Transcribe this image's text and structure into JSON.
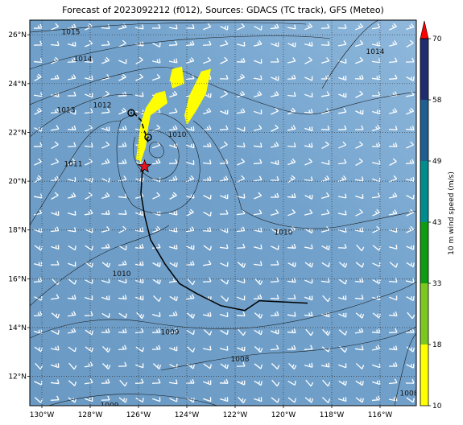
{
  "title": "Forecast of 2023092212 (f012), Sources: GDACS (TC track), GFS (Meteo)",
  "map": {
    "lon_range": [
      -130.5,
      -114.5
    ],
    "lat_range": [
      10.8,
      26.6
    ],
    "lon_ticks": [
      {
        "value": -130,
        "label": "130°W"
      },
      {
        "value": -128,
        "label": "128°W"
      },
      {
        "value": -126,
        "label": "126°W"
      },
      {
        "value": -124,
        "label": "124°W"
      },
      {
        "value": -122,
        "label": "122°W"
      },
      {
        "value": -120,
        "label": "120°W"
      },
      {
        "value": -118,
        "label": "118°W"
      },
      {
        "value": -116,
        "label": "116°W"
      }
    ],
    "lat_ticks": [
      {
        "value": 12,
        "label": "12°N"
      },
      {
        "value": 14,
        "label": "14°N"
      },
      {
        "value": 16,
        "label": "16°N"
      },
      {
        "value": 18,
        "label": "18°N"
      },
      {
        "value": 20,
        "label": "20°N"
      },
      {
        "value": 22,
        "label": "22°N"
      },
      {
        "value": 24,
        "label": "24°N"
      },
      {
        "value": 26,
        "label": "26°N"
      }
    ],
    "grid": true,
    "background_color": "#6f9fc9",
    "pressure_labels": [
      {
        "label": "1015",
        "lon": -128.8,
        "lat": 26.1
      },
      {
        "label": "1014",
        "lon": -128.3,
        "lat": 25.0
      },
      {
        "label": "1014",
        "lon": -116.2,
        "lat": 25.3
      },
      {
        "label": "1013",
        "lon": -129.0,
        "lat": 22.9
      },
      {
        "label": "1012",
        "lon": -127.5,
        "lat": 23.1
      },
      {
        "label": "1011",
        "lon": -128.7,
        "lat": 20.7
      },
      {
        "label": "1010",
        "lon": -124.4,
        "lat": 21.9
      },
      {
        "label": "1010",
        "lon": -120.0,
        "lat": 17.9
      },
      {
        "label": "1010",
        "lon": -126.7,
        "lat": 16.2
      },
      {
        "label": "1009",
        "lon": -124.7,
        "lat": 13.8
      },
      {
        "label": "1008",
        "lon": -121.8,
        "lat": 12.7
      },
      {
        "label": "1008",
        "lon": -114.8,
        "lat": 11.3
      },
      {
        "label": "1009",
        "lon": -127.2,
        "lat": 10.8
      }
    ],
    "tc_track": [
      [
        -119.0,
        15.0
      ],
      [
        -121.0,
        15.1
      ],
      [
        -121.6,
        14.7
      ],
      [
        -122.6,
        14.9
      ],
      [
        -123.6,
        15.4
      ],
      [
        -124.3,
        15.8
      ],
      [
        -124.9,
        16.6
      ],
      [
        -125.5,
        17.6
      ],
      [
        -125.75,
        18.6
      ],
      [
        -125.9,
        19.5
      ],
      [
        -125.85,
        20.3
      ],
      [
        -125.75,
        20.6
      ]
    ],
    "tc_track_north": [
      [
        -125.6,
        21.6
      ],
      [
        -125.9,
        22.5
      ],
      [
        -126.3,
        22.9
      ]
    ],
    "tc_current_position": {
      "lon": -125.75,
      "lat": 20.6
    },
    "tc_forecast_points": [
      {
        "lon": -125.6,
        "lat": 21.8
      },
      {
        "lon": -126.3,
        "lat": 22.8
      }
    ],
    "wind_swath": [
      [
        [
          -125.3,
          23.6
        ],
        [
          -124.9,
          23.7
        ],
        [
          -124.8,
          23.2
        ],
        [
          -125.5,
          22.7
        ],
        [
          -125.6,
          22.2
        ],
        [
          -125.7,
          21.4
        ],
        [
          -125.9,
          20.8
        ],
        [
          -126.1,
          20.9
        ],
        [
          -126.0,
          21.7
        ],
        [
          -125.9,
          22.4
        ],
        [
          -125.7,
          23.0
        ]
      ],
      [
        [
          -124.6,
          24.6
        ],
        [
          -124.2,
          24.7
        ],
        [
          -124.1,
          24.0
        ],
        [
          -124.6,
          23.8
        ],
        [
          -124.7,
          24.2
        ]
      ],
      [
        [
          -123.4,
          24.5
        ],
        [
          -123.0,
          24.6
        ],
        [
          -123.2,
          23.6
        ],
        [
          -123.6,
          22.9
        ],
        [
          -124.0,
          22.3
        ],
        [
          -124.1,
          22.7
        ],
        [
          -123.9,
          23.5
        ]
      ]
    ]
  },
  "colorbar": {
    "label": "10 m wind speed (m/s)",
    "ticks": [
      "10",
      "18",
      "33",
      "43",
      "49",
      "58",
      "70"
    ],
    "colors": [
      "#ffff00",
      "#7dc81e",
      "#109b10",
      "#008c8c",
      "#1f5f8f",
      "#1f2d6e"
    ],
    "extend_color": "#ff0000"
  },
  "wind_color": "#ffffff"
}
